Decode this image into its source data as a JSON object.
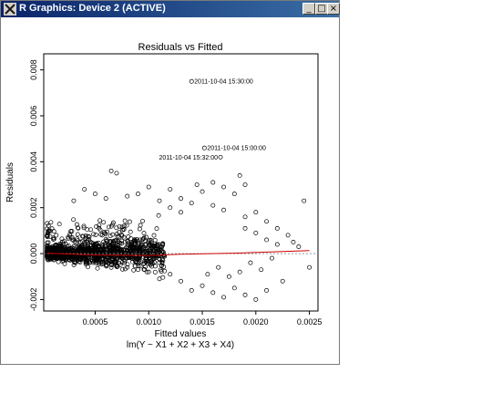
{
  "window": {
    "title": "R Graphics: Device 2 (ACTIVE)",
    "min_label": "_",
    "max_label": "□",
    "close_label": "×"
  },
  "chart_data": {
    "type": "scatter",
    "title": "Residuals vs Fitted",
    "xlabel": "Fitted values",
    "subtitle": "lm(Y ~ X1 + X2 + X3 + X4)",
    "ylabel": "Residuals",
    "xlim": [
      2e-05,
      0.00258
    ],
    "ylim": [
      -0.0025,
      0.0087
    ],
    "x_ticks": [
      "0.0005",
      "0.0010",
      "0.0015",
      "0.0020",
      "0.0025"
    ],
    "x_tick_values": [
      0.0005,
      0.001,
      0.0015,
      0.002,
      0.0025
    ],
    "y_ticks": [
      "-0.002",
      "0.000",
      "0.002",
      "0.004",
      "0.006",
      "0.008"
    ],
    "y_tick_values": [
      -0.002,
      0,
      0.002,
      0.004,
      0.006,
      0.008
    ],
    "point_color": "#000000",
    "smooth_color": "#cc0000",
    "reference_line_y": 0,
    "smooth_line": [
      [
        5e-05,
        2e-05
      ],
      [
        0.0005,
        -6e-05
      ],
      [
        0.001,
        -8e-05
      ],
      [
        0.0013,
        -3e-05
      ],
      [
        0.0018,
        2e-05
      ],
      [
        0.0025,
        0.00013
      ]
    ],
    "labeled_points": [
      {
        "label": "2011-10-04 15:30:00",
        "x": 0.0014,
        "y": 0.0075
      },
      {
        "label": "2011-10-04 15:00:00",
        "x": 0.00152,
        "y": 0.0046
      },
      {
        "label": "2011-10-04 15:32:00",
        "x": 0.00167,
        "y": 0.0042
      }
    ],
    "points": [
      [
        0.00065,
        0.0036
      ],
      [
        0.0007,
        0.0035
      ],
      [
        0.0009,
        0.0026
      ],
      [
        0.001,
        0.0029
      ],
      [
        0.0012,
        0.0028
      ],
      [
        0.0013,
        0.0024
      ],
      [
        0.00145,
        0.003
      ],
      [
        0.0016,
        0.0031
      ],
      [
        0.0017,
        0.0029
      ],
      [
        0.0018,
        0.0026
      ],
      [
        0.00185,
        0.0034
      ],
      [
        0.0019,
        0.003
      ],
      [
        0.0015,
        0.0027
      ],
      [
        0.0014,
        0.0022
      ],
      [
        0.0011,
        0.0023
      ],
      [
        0.0008,
        0.0025
      ],
      [
        0.0006,
        0.0024
      ],
      [
        0.0005,
        0.0026
      ],
      [
        0.0004,
        0.0028
      ],
      [
        0.0003,
        0.0023
      ],
      [
        0.0012,
        0.002
      ],
      [
        0.0013,
        0.0018
      ],
      [
        0.0016,
        0.0021
      ],
      [
        0.0017,
        0.0019
      ],
      [
        0.0019,
        0.0016
      ],
      [
        0.002,
        0.0018
      ],
      [
        0.0021,
        0.0014
      ],
      [
        0.0022,
        0.0011
      ],
      [
        0.0023,
        0.0008
      ],
      [
        0.00245,
        0.0023
      ],
      [
        0.00235,
        0.0005
      ],
      [
        0.0024,
        0.0003
      ],
      [
        0.0022,
        0.0004
      ],
      [
        0.0021,
        0.0006
      ],
      [
        0.002,
        0.0009
      ],
      [
        0.0019,
        0.0011
      ],
      [
        0.0025,
        -0.0006
      ],
      [
        0.00225,
        -0.0012
      ],
      [
        0.0021,
        -0.0016
      ],
      [
        0.002,
        -0.002
      ],
      [
        0.0019,
        -0.0018
      ],
      [
        0.0018,
        -0.0015
      ],
      [
        0.0017,
        -0.0019
      ],
      [
        0.0016,
        -0.0017
      ],
      [
        0.0015,
        -0.0014
      ],
      [
        0.0014,
        -0.0016
      ],
      [
        0.0013,
        -0.0012
      ],
      [
        0.0012,
        -0.0009
      ],
      [
        0.0011,
        -0.0011
      ],
      [
        0.001,
        -0.0008
      ],
      [
        0.0009,
        -0.0007
      ],
      [
        0.0008,
        -0.0006
      ],
      [
        0.0007,
        -0.0005
      ],
      [
        0.00185,
        -0.0008
      ],
      [
        0.00175,
        -0.001
      ],
      [
        0.00155,
        -0.0009
      ],
      [
        0.00165,
        -0.0006
      ],
      [
        0.00195,
        -0.0004
      ],
      [
        0.00205,
        -0.0007
      ],
      [
        0.00215,
        -0.0002
      ]
    ]
  }
}
